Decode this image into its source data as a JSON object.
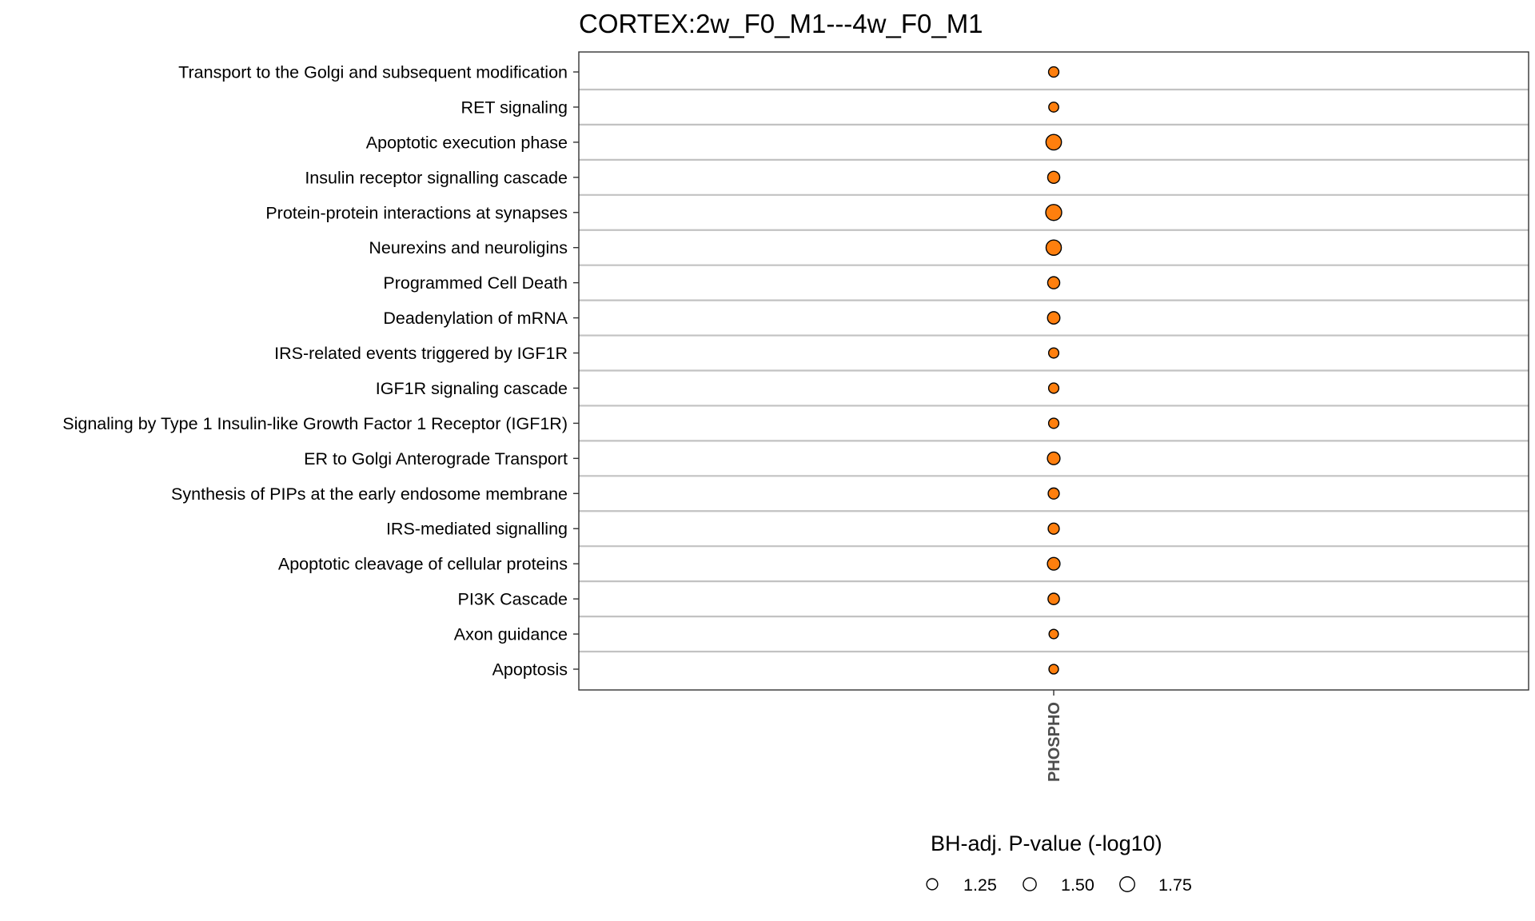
{
  "chart_data": {
    "type": "scatter",
    "title": "CORTEX:2w_F0_M1---4w_F0_M1",
    "x_categories": [
      "PHOSPHO"
    ],
    "categories": [
      "Transport to the Golgi and subsequent modification",
      "RET signaling",
      "Apoptotic execution phase",
      "Insulin receptor signalling cascade",
      "Protein-protein interactions at synapses",
      "Neurexins and neuroligins",
      "Programmed Cell Death",
      "Deadenylation of mRNA",
      "IRS-related events triggered by IGF1R",
      "IGF1R signaling cascade",
      "Signaling by Type 1 Insulin-like Growth Factor 1 Receptor (IGF1R)",
      "ER to Golgi Anterograde Transport",
      "Synthesis of PIPs at the early endosome membrane",
      "IRS-mediated signalling",
      "Apoptotic cleavage of cellular proteins",
      "PI3K Cascade",
      "Axon guidance",
      "Apoptosis"
    ],
    "series": [
      {
        "x": "PHOSPHO",
        "values": [
          1.17,
          1.12,
          1.85,
          1.38,
          1.92,
          1.82,
          1.38,
          1.42,
          1.15,
          1.16,
          1.16,
          1.45,
          1.26,
          1.26,
          1.45,
          1.3,
          1.06,
          1.08
        ]
      }
    ],
    "legend": {
      "title": "BH-adj. P-value (-log10)",
      "position": "bottom",
      "values": [
        1.25,
        1.5,
        1.75
      ],
      "labels": [
        "1.25",
        "1.50",
        "1.75"
      ]
    },
    "point_fill": "#ff7f0e",
    "point_stroke": "#000000",
    "gridlines": true
  }
}
